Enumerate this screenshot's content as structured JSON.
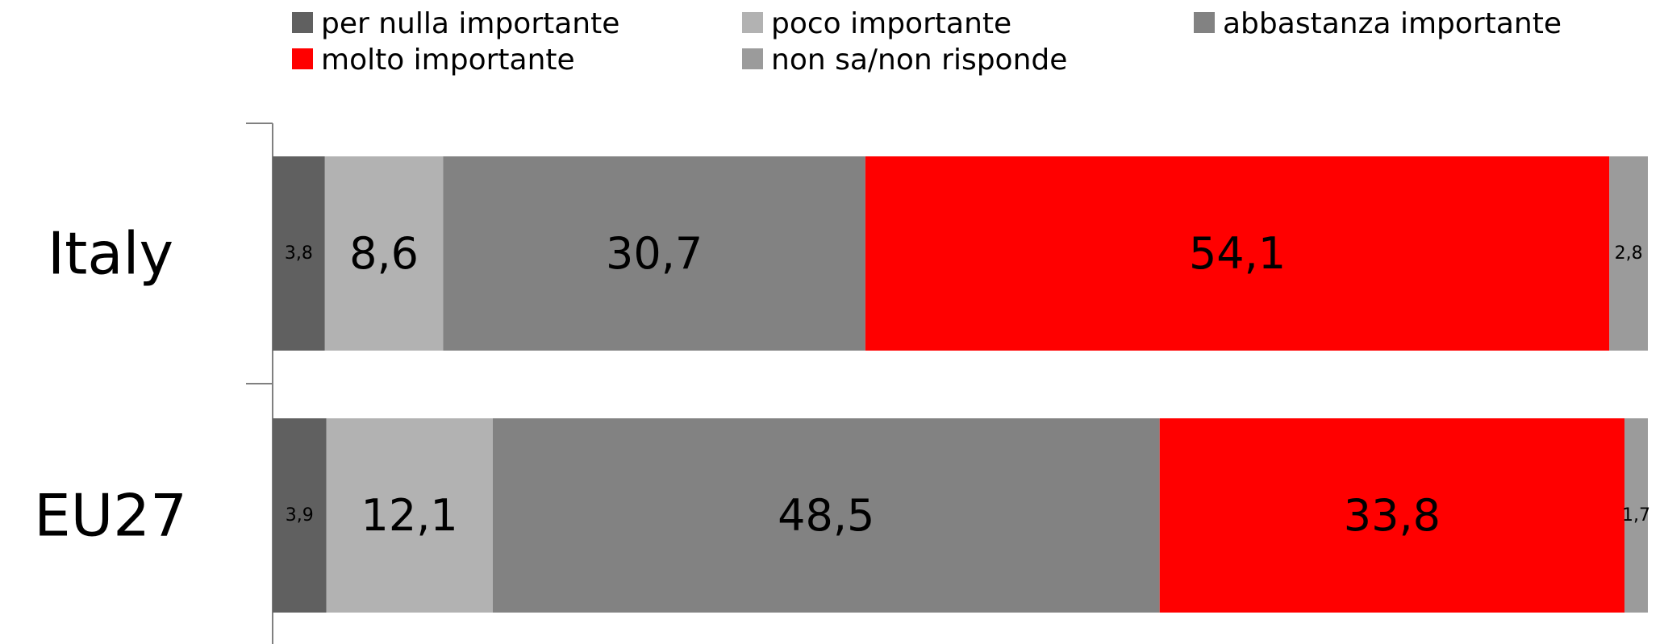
{
  "chart_data": {
    "type": "bar",
    "orientation": "horizontal",
    "stacked": true,
    "percent_stacked": true,
    "categories": [
      "Italy",
      "EU27"
    ],
    "series": [
      {
        "name": "per nulla importante",
        "color": "#606060",
        "values": [
          3.8,
          3.9
        ],
        "labels": [
          "3,8",
          "3,9"
        ]
      },
      {
        "name": "poco importante",
        "color": "#b2b2b2",
        "values": [
          8.6,
          12.1
        ],
        "labels": [
          "8,6",
          "12,1"
        ]
      },
      {
        "name": "abbastanza importante",
        "color": "#828282",
        "values": [
          30.7,
          48.5
        ],
        "labels": [
          "30,7",
          "48,5"
        ]
      },
      {
        "name": "molto importante",
        "color": "#ff0000",
        "values": [
          54.1,
          33.8
        ],
        "labels": [
          "54,1",
          "33,8"
        ]
      },
      {
        "name": "non sa/non risponde",
        "color": "#9b9b9b",
        "values": [
          2.8,
          1.7
        ],
        "labels": [
          "2,8",
          "1,7"
        ]
      }
    ],
    "legend_position": "top",
    "grid": false
  }
}
